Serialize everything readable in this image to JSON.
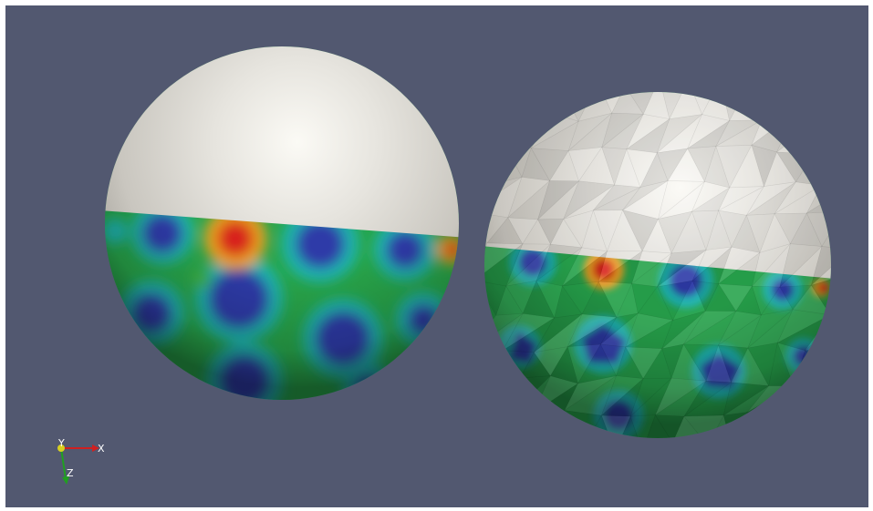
{
  "view": {
    "background_color": "#525870",
    "objects": [
      {
        "name": "smooth-sphere",
        "shading": "smooth",
        "top_color": "#e8e6e0",
        "colormap": [
          "#2a2f9c",
          "#19b8c8",
          "#22b44a",
          "#f0c020",
          "#d8201c"
        ]
      },
      {
        "name": "faceted-sphere",
        "shading": "flat",
        "top_color": "#e6e3dd",
        "colormap": [
          "#2a2f9c",
          "#19b8c8",
          "#22b44a",
          "#f0c020",
          "#d8201c"
        ]
      }
    ]
  },
  "orientation_axes": {
    "x_label": "X",
    "y_label": "Y",
    "z_label": "Z",
    "x_color": "#d02020",
    "y_color": "#d8d020",
    "z_color": "#20a020"
  }
}
